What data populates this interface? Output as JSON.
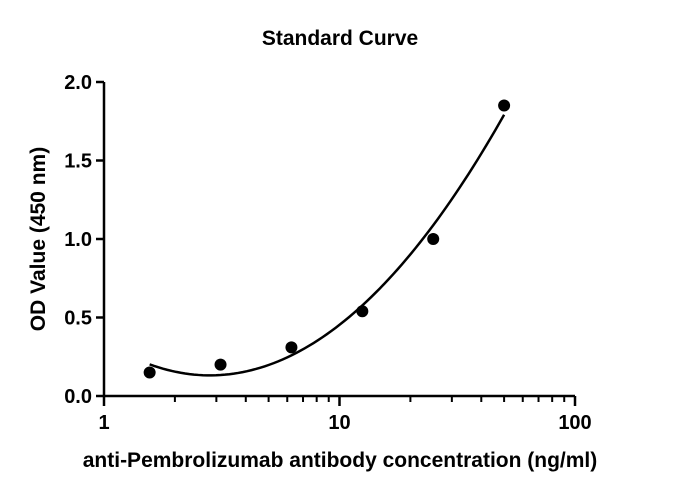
{
  "chart_data": {
    "type": "scatter",
    "title": "Standard Curve",
    "xlabel": "anti-Pembrolizumab antibody concentration (ng/ml)",
    "ylabel": "OD Value (450 nm)",
    "xscale": "log",
    "xlim": [
      1,
      100
    ],
    "ylim": [
      0.0,
      2.0
    ],
    "x_ticks": [
      1,
      10,
      100
    ],
    "x_tick_labels": [
      "1",
      "10",
      "100"
    ],
    "y_ticks": [
      0.0,
      0.5,
      1.0,
      1.5,
      2.0
    ],
    "y_tick_labels": [
      "0.0",
      "0.5",
      "1.0",
      "1.5",
      "2.0"
    ],
    "grid": false,
    "legend": false,
    "fit_curve": true,
    "series": [
      {
        "x": [
          1.5625,
          3.125,
          6.25,
          12.5,
          25,
          50
        ],
        "y": [
          0.15,
          0.2,
          0.31,
          0.54,
          1.0,
          1.85
        ]
      }
    ],
    "colors": {
      "marker": "#000000",
      "line": "#000000",
      "axis": "#000000"
    }
  }
}
